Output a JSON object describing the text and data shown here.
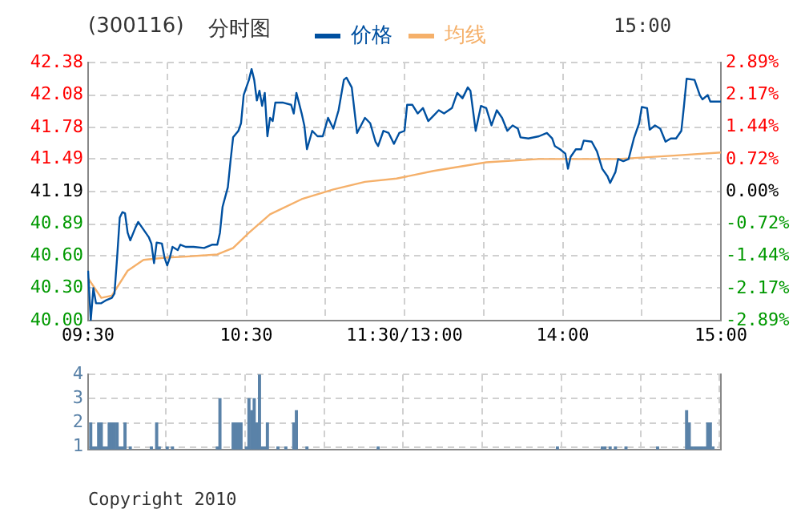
{
  "chart_data": [
    {
      "type": "line",
      "title": "(300116)",
      "subtitle": "分时图",
      "annotations": [
        "15:00"
      ],
      "legend": "top",
      "grid": true,
      "categories": [
        "09:30",
        null,
        null,
        null,
        null,
        null,
        null,
        null,
        null,
        null,
        null,
        null,
        null,
        null,
        null,
        null,
        null,
        null,
        null,
        null,
        null,
        null,
        null,
        null,
        null,
        null,
        null,
        null,
        null,
        null,
        null,
        null,
        null,
        null,
        null,
        null,
        null,
        null,
        null,
        null,
        null,
        null,
        null,
        null,
        null,
        null,
        null,
        null,
        null,
        null,
        null,
        null,
        null,
        null,
        null,
        null,
        null,
        null,
        null,
        null,
        "10:30",
        null,
        null,
        null,
        null,
        null,
        null,
        null,
        null,
        null,
        null,
        null,
        null,
        null,
        null,
        null,
        null,
        null,
        null,
        null,
        null,
        null,
        null,
        null,
        null,
        null,
        null,
        null,
        null,
        null,
        null,
        null,
        null,
        null,
        null,
        null,
        null,
        null,
        null,
        null,
        null,
        null,
        null,
        null,
        null,
        null,
        null,
        null,
        null,
        null,
        null,
        null,
        null,
        null,
        null,
        null,
        null,
        null,
        null,
        null,
        "11:30/13:00",
        null,
        null,
        null,
        null,
        null,
        null,
        null,
        null,
        null,
        null,
        null,
        null,
        null,
        null,
        null,
        null,
        null,
        null,
        null,
        null,
        null,
        null,
        null,
        null,
        null,
        null,
        null,
        null,
        null,
        null,
        null,
        null,
        null,
        null,
        null,
        null,
        null,
        null,
        null,
        null,
        null,
        null,
        null,
        null,
        null,
        null,
        null,
        null,
        null,
        null,
        null,
        null,
        null,
        null,
        null,
        null,
        null,
        null,
        null,
        "14:00",
        null,
        null,
        null,
        null,
        null,
        null,
        null,
        null,
        null,
        null,
        null,
        null,
        null,
        null,
        null,
        null,
        null,
        null,
        null,
        null,
        null,
        null,
        null,
        null,
        null,
        null,
        null,
        null,
        null,
        null,
        null,
        null,
        null,
        null,
        null,
        null,
        null,
        null,
        null,
        null,
        null,
        null,
        null,
        null,
        null,
        null,
        null,
        null,
        null,
        null,
        null,
        null,
        null,
        null,
        null,
        null,
        null,
        null,
        null,
        "15:00"
      ],
      "ylim": [
        40,
        42.38
      ],
      "yticks": [
        {
          "value": 40,
          "label": "40.00"
        },
        {
          "value": 40.3,
          "label": "40.30"
        },
        {
          "value": 40.6,
          "label": "40.60"
        },
        40.89,
        41.19,
        41.49,
        41.78,
        42.08,
        42.38
      ],
      "y2lim": [
        -2.89,
        2.89
      ],
      "y2ticks": [
        {
          "value": -2.89,
          "label": "-2.89%"
        },
        {
          "value": -2.17,
          "label": "-2.17%"
        },
        {
          "value": -1.44,
          "label": "-1.44%"
        },
        {
          "value": -0.72,
          "label": "-0.72%"
        },
        {
          "value": 0,
          "label": "0.00%"
        },
        {
          "value": 0.72,
          "label": "0.72%"
        },
        {
          "value": 1.44,
          "label": "1.44%"
        },
        {
          "value": 2.17,
          "label": "2.17%"
        },
        {
          "value": 2.89,
          "label": "2.89%"
        }
      ],
      "series": [
        {
          "name": "价格",
          "color": "#0050a0",
          "values": [
            40.46,
            40.0,
            40.3,
            40.16,
            null,
            40.16,
            null,
            40.19,
            null,
            40.21,
            40.25,
            40.58,
            40.95,
            41.0,
            40.99,
            40.81,
            40.74,
            null,
            40.86,
            40.91,
            null,
            40.84,
            null,
            40.77,
            40.71,
            40.53,
            40.72,
            null,
            40.71,
            40.58,
            40.51,
            40.58,
            40.68,
            null,
            40.65,
            40.7,
            null,
            40.68,
            null,
            null,
            40.68,
            null,
            null,
            null,
            40.67,
            null,
            null,
            40.7,
            null,
            40.7,
            40.81,
            41.05,
            null,
            41.23,
            41.47,
            41.69,
            null,
            41.75,
            41.82,
            42.08,
            null,
            42.22,
            42.32,
            42.22,
            42.03,
            42.12,
            41.98,
            42.1,
            41.7,
            41.87,
            41.84,
            42.01,
            null,
            null,
            42.01,
            null,
            null,
            41.99,
            41.91,
            42.1,
            null,
            41.91,
            41.8,
            41.58,
            null,
            41.75,
            null,
            41.7,
            null,
            41.7,
            null,
            41.87,
            null,
            41.77,
            null,
            41.94,
            null,
            42.22,
            42.24,
            null,
            42.15,
            null,
            41.73,
            null,
            null,
            41.87,
            null,
            41.82,
            null,
            41.65,
            41.61,
            null,
            41.75,
            null,
            41.73,
            null,
            41.63,
            null,
            41.73,
            null,
            41.75,
            41.99,
            null,
            41.99,
            null,
            41.91,
            null,
            41.96,
            null,
            41.84,
            null,
            41.89,
            null,
            41.94,
            null,
            41.91,
            null,
            null,
            41.96,
            null,
            42.1,
            null,
            42.05,
            null,
            42.15,
            42.12,
            null,
            41.75,
            null,
            41.98,
            null,
            41.96,
            null,
            41.8,
            null,
            41.94,
            null,
            41.87,
            null,
            41.75,
            null,
            41.8,
            null,
            41.77,
            41.69,
            null,
            null,
            41.68,
            null,
            null,
            null,
            41.7,
            null,
            null,
            41.73,
            null,
            41.68,
            41.61,
            null,
            41.58,
            null,
            41.54,
            41.4,
            41.51,
            null,
            41.58,
            null,
            41.58,
            41.66,
            null,
            null,
            41.65,
            null,
            41.56,
            null,
            41.4,
            null,
            41.33,
            41.27,
            null,
            41.37,
            41.49,
            null,
            41.47,
            null,
            41.49,
            null,
            41.68,
            null,
            41.82,
            41.97,
            null,
            41.96,
            41.76,
            null,
            41.8,
            null,
            41.77,
            null,
            41.65,
            null,
            41.68,
            null,
            41.68,
            null,
            41.75,
            41.98,
            42.23,
            null,
            null,
            42.22,
            null,
            42.08,
            42.04,
            null,
            42.08,
            42.02,
            null,
            null,
            null,
            42.02
          ]
        },
        {
          "name": "均线",
          "color": "#f5b06a",
          "values": [
            40.39,
            null,
            null,
            null,
            null,
            40.21,
            null,
            null,
            null,
            40.23,
            null,
            null,
            null,
            null,
            null,
            40.46,
            null,
            null,
            null,
            null,
            null,
            40.56,
            null,
            null,
            null,
            null,
            null,
            null,
            null,
            40.58,
            null,
            null,
            null,
            null,
            null,
            null,
            null,
            40.59,
            null,
            null,
            null,
            null,
            null,
            null,
            null,
            null,
            null,
            null,
            null,
            40.61,
            null,
            null,
            null,
            null,
            null,
            40.67,
            null,
            null,
            null,
            null,
            null,
            40.81,
            null,
            null,
            null,
            null,
            null,
            null,
            null,
            40.98,
            null,
            null,
            null,
            null,
            null,
            null,
            null,
            null,
            null,
            null,
            null,
            41.12,
            null,
            null,
            null,
            null,
            null,
            null,
            null,
            null,
            null,
            null,
            null,
            41.21,
            null,
            null,
            null,
            null,
            null,
            null,
            null,
            null,
            null,
            null,
            null,
            41.28,
            null,
            null,
            null,
            null,
            null,
            null,
            null,
            null,
            null,
            null,
            null,
            41.31,
            null,
            null,
            null,
            null,
            null,
            null,
            null,
            null,
            null,
            null,
            null,
            null,
            null,
            41.38,
            null,
            null,
            null,
            null,
            null,
            null,
            null,
            null,
            null,
            null,
            null,
            null,
            null,
            null,
            null,
            null,
            null,
            null,
            null,
            41.46,
            null,
            null,
            null,
            null,
            null,
            null,
            null,
            null,
            null,
            null,
            null,
            null,
            null,
            null,
            null,
            null,
            null,
            null,
            null,
            41.49,
            null,
            null,
            null,
            null,
            null,
            null,
            null,
            null,
            null,
            null,
            null,
            null,
            null,
            null,
            null,
            null,
            null,
            null,
            null,
            null,
            null,
            null,
            null,
            null,
            null,
            null,
            null,
            null,
            null,
            41.49,
            null,
            null,
            null,
            null,
            null,
            null,
            null,
            null,
            null,
            null,
            null,
            null,
            null,
            null,
            null,
            null,
            null,
            null,
            null,
            41.52,
            null,
            null,
            null,
            null,
            null,
            null,
            null,
            null,
            null,
            null,
            null,
            null,
            null,
            null,
            null,
            null,
            null,
            null,
            41.55
          ]
        }
      ]
    },
    {
      "type": "bar",
      "grid": true,
      "tick_labels": "y",
      "annotations": [
        "Copyright 2010"
      ],
      "color": "#5a82a8",
      "categories": [
        null,
        null,
        null,
        null,
        null,
        null,
        null,
        null,
        null,
        null,
        null,
        null,
        null,
        null,
        null,
        null,
        null,
        null,
        null,
        null,
        null,
        null,
        null,
        null,
        null,
        null,
        null,
        null,
        null,
        null,
        null,
        null,
        null,
        null,
        null,
        null,
        null,
        null,
        null,
        null,
        null,
        null,
        null,
        null,
        null,
        null,
        null,
        null,
        null,
        null,
        null,
        null,
        null,
        null,
        null,
        null,
        null,
        null,
        null,
        null,
        null,
        null,
        null,
        null,
        null,
        null,
        null,
        null,
        null,
        null,
        null,
        null,
        null,
        null,
        null,
        null,
        null,
        null,
        null,
        null,
        null,
        null,
        null,
        null,
        null,
        null,
        null,
        null,
        null,
        null,
        null,
        null,
        null,
        null,
        null,
        null,
        null,
        null,
        null,
        null,
        null,
        null,
        null,
        null,
        null,
        null,
        null,
        null,
        null,
        null,
        null,
        null,
        null,
        null,
        null,
        null,
        null,
        null,
        null,
        null,
        null,
        null,
        null,
        null,
        null,
        null,
        null,
        null,
        null,
        null,
        null,
        null,
        null,
        null,
        null,
        null,
        null,
        null,
        null,
        null,
        null,
        null,
        null,
        null,
        null,
        null,
        null,
        null,
        null,
        null,
        null,
        null,
        null,
        null,
        null,
        null,
        null,
        null,
        null,
        null,
        null,
        null,
        null,
        null,
        null,
        null,
        null,
        null,
        null,
        null,
        null,
        null,
        null,
        null,
        null,
        null,
        null,
        null,
        null,
        null,
        null,
        null,
        null,
        null,
        null,
        null,
        null,
        null,
        null,
        null,
        null,
        null,
        null,
        null,
        null,
        null,
        null,
        null,
        null,
        null,
        null,
        null,
        null,
        null,
        null,
        null,
        null,
        null,
        null,
        null,
        null,
        null,
        null,
        null,
        null,
        null,
        null,
        null,
        null,
        null,
        null,
        null,
        null,
        null,
        null,
        null,
        null,
        null,
        null,
        null,
        null,
        null,
        null,
        null,
        null,
        null,
        null,
        null,
        null,
        null,
        null
      ],
      "ylim": [
        0.9,
        4
      ],
      "yticks": [
        1,
        2,
        3,
        4
      ],
      "values": [
        null,
        2,
        1,
        1,
        2,
        2,
        1,
        1,
        2,
        2,
        2,
        2,
        1,
        1,
        2,
        null,
        1,
        null,
        null,
        null,
        null,
        null,
        null,
        null,
        1,
        null,
        2,
        1,
        null,
        null,
        1,
        null,
        1,
        null,
        null,
        null,
        null,
        null,
        null,
        null,
        null,
        null,
        null,
        null,
        null,
        null,
        null,
        null,
        null,
        1,
        3,
        null,
        null,
        null,
        null,
        2,
        2,
        2,
        2,
        null,
        1,
        3,
        2.5,
        3,
        2,
        4,
        1,
        1,
        2,
        null,
        null,
        null,
        1,
        null,
        null,
        1,
        null,
        null,
        2,
        2.5,
        null,
        null,
        null,
        1,
        null,
        null,
        null,
        null,
        null,
        null,
        null,
        null,
        null,
        null,
        null,
        null,
        null,
        null,
        null,
        null,
        null,
        null,
        null,
        null,
        null,
        null,
        null,
        null,
        null,
        null,
        1,
        null,
        null,
        null,
        null,
        null,
        null,
        null,
        null,
        null,
        null,
        null,
        null,
        null,
        null,
        null,
        null,
        null,
        null,
        null,
        null,
        null,
        null,
        null,
        null,
        null,
        null,
        null,
        null,
        null,
        null,
        null,
        null,
        null,
        null,
        null,
        null,
        null,
        null,
        null,
        null,
        null,
        null,
        null,
        null,
        null,
        null,
        null,
        null,
        null,
        null,
        null,
        null,
        null,
        null,
        null,
        null,
        null,
        null,
        null,
        null,
        null,
        null,
        null,
        null,
        null,
        null,
        null,
        1,
        null,
        null,
        null,
        null,
        null,
        null,
        null,
        null,
        null,
        null,
        null,
        null,
        null,
        null,
        null,
        null,
        1,
        1,
        null,
        1,
        null,
        1,
        null,
        null,
        null,
        1,
        null,
        null,
        null,
        null,
        null,
        null,
        null,
        null,
        null,
        null,
        null,
        1,
        null,
        null,
        null,
        null,
        null,
        null,
        null,
        null,
        null,
        null,
        2.5,
        2,
        1,
        1,
        1,
        1,
        1,
        1,
        2,
        2,
        1,
        null,
        null,
        null
      ]
    }
  ]
}
